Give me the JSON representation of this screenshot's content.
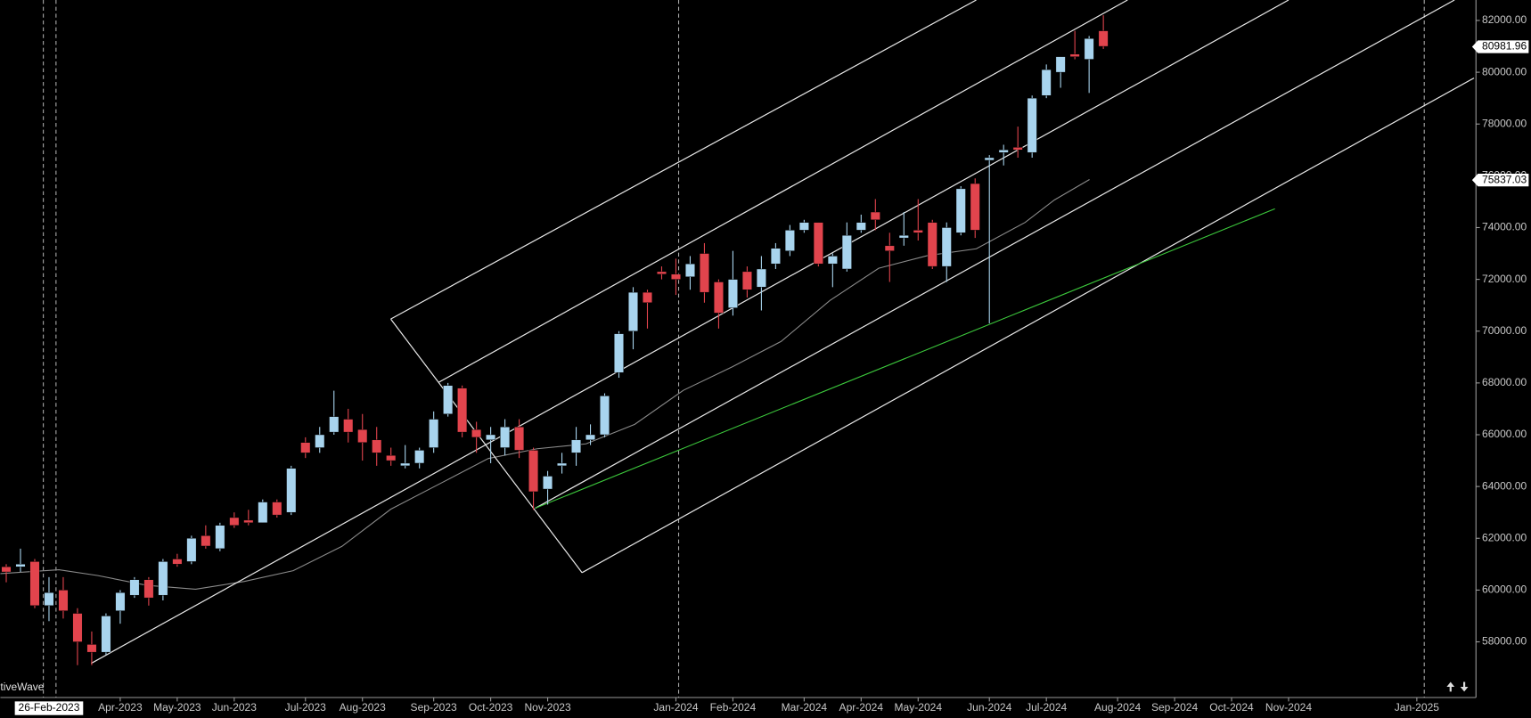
{
  "chart_data": {
    "type": "candlestick",
    "categories": [
      null,
      null,
      null,
      null,
      null,
      null,
      null,
      null,
      "Apr-2023",
      null,
      null,
      null,
      "May-2023",
      null,
      null,
      null,
      "Jun-2023",
      null,
      null,
      null,
      null,
      "Jul-2023",
      null,
      null,
      null,
      "Aug-2023",
      null,
      null,
      null,
      null,
      "Sep-2023",
      null,
      null,
      null,
      "Oct-2023",
      null,
      null,
      null,
      "Nov-2023",
      null,
      null,
      null,
      null,
      null,
      null,
      null,
      null,
      "Jan-2024",
      null,
      null,
      null,
      "Feb-2024",
      null,
      null,
      null,
      null,
      "Mar-2024",
      null,
      null,
      null,
      "Apr-2024",
      null,
      null,
      null,
      "May-2024",
      null,
      null,
      null,
      null,
      "Jun-2024",
      null,
      null,
      null,
      "Jul-2024",
      null,
      null,
      null,
      null,
      "Aug-2024",
      null,
      null,
      null,
      "Sep-2024",
      null,
      null,
      null,
      "Oct-2024",
      null,
      null,
      null,
      "Nov-2024",
      null,
      null,
      null,
      null,
      null,
      null,
      null,
      null,
      "Jan-2025",
      null,
      null,
      null,
      null
    ],
    "open": [
      60900,
      60900,
      61100,
      59400,
      60000,
      59100,
      57900,
      57600,
      59200,
      59800,
      60400,
      59800,
      61200,
      61100,
      62100,
      61600,
      62800,
      62700,
      62600,
      63400,
      63000,
      65700,
      65500,
      66100,
      66600,
      66200,
      65800,
      65200,
      64800,
      64900,
      65500,
      66800,
      67800,
      66200,
      65800,
      65500,
      66300,
      65400,
      63900,
      64800,
      65300,
      65800,
      66000,
      68400,
      70000,
      71500,
      72300,
      72200,
      72100,
      73000,
      71900,
      70900,
      72300,
      71700,
      72600,
      73100,
      73900,
      74200,
      72600,
      72400,
      73900,
      74600,
      73300,
      73600,
      73900,
      74200,
      72500,
      73800,
      75700,
      76600,
      76900,
      77100,
      76900,
      79100,
      80000,
      80700,
      80500,
      81600,
      null,
      null,
      null,
      null,
      null,
      null,
      null,
      null,
      null,
      null,
      null,
      null,
      null,
      null,
      null,
      null,
      null,
      null,
      null,
      null,
      null,
      null,
      null,
      null,
      null,
      null
    ],
    "high": [
      61000,
      61600,
      61200,
      60500,
      60500,
      59300,
      58400,
      59100,
      60000,
      60500,
      60500,
      61200,
      61400,
      62100,
      62500,
      62600,
      63000,
      63100,
      63500,
      63500,
      64800,
      65900,
      66300,
      67700,
      67000,
      66800,
      66300,
      65500,
      65600,
      65500,
      66900,
      68000,
      67900,
      66500,
      66300,
      66600,
      66600,
      65500,
      64600,
      65300,
      66300,
      66400,
      67600,
      70000,
      71700,
      71600,
      72500,
      72800,
      72900,
      73400,
      72000,
      73100,
      72500,
      72900,
      73400,
      74100,
      74300,
      74200,
      73000,
      74200,
      74500,
      75100,
      73800,
      74600,
      75100,
      74300,
      74200,
      75600,
      75900,
      76800,
      77200,
      77900,
      79100,
      80300,
      80600,
      81600,
      81400,
      82200,
      null,
      null,
      null,
      null,
      null,
      null,
      null,
      null,
      null,
      null,
      null,
      null,
      null,
      null,
      null,
      null,
      null,
      null,
      null,
      null,
      null,
      null,
      null,
      null,
      null,
      null
    ],
    "low": [
      60300,
      60700,
      59300,
      58800,
      58900,
      57100,
      57100,
      57500,
      58700,
      59700,
      59400,
      59600,
      60900,
      61000,
      61600,
      61500,
      62400,
      62500,
      62600,
      62800,
      62900,
      65100,
      65300,
      66000,
      65700,
      65000,
      64800,
      64800,
      64700,
      64700,
      65300,
      66700,
      65900,
      65300,
      64900,
      65200,
      65100,
      63100,
      63300,
      64500,
      64800,
      65600,
      65900,
      68200,
      69300,
      70100,
      72000,
      71400,
      71600,
      71100,
      70100,
      70600,
      71300,
      70800,
      72400,
      72900,
      73800,
      72500,
      71700,
      72300,
      73800,
      73900,
      71900,
      73300,
      73500,
      72400,
      71900,
      73700,
      73600,
      70300,
      76400,
      76700,
      76700,
      79000,
      79400,
      80500,
      79200,
      80900,
      null,
      null,
      null,
      null,
      null,
      null,
      null,
      null,
      null,
      null,
      null,
      null,
      null,
      null,
      null,
      null,
      null,
      null,
      null,
      null,
      null,
      null,
      null,
      null,
      null,
      null
    ],
    "close": [
      60700,
      61000,
      59400,
      59900,
      59200,
      58000,
      57600,
      59000,
      59900,
      60400,
      59700,
      61100,
      61000,
      62000,
      61700,
      62500,
      62500,
      62600,
      63400,
      62900,
      64700,
      65300,
      66000,
      66700,
      66100,
      65700,
      65300,
      65000,
      64900,
      65400,
      66600,
      67900,
      66100,
      65900,
      66000,
      66300,
      65400,
      63800,
      64400,
      64900,
      65800,
      66000,
      67500,
      69900,
      71500,
      71100,
      72200,
      72000,
      72600,
      71500,
      70700,
      72000,
      71600,
      72400,
      73200,
      73900,
      74200,
      72600,
      72900,
      73700,
      74200,
      74300,
      73100,
      73700,
      73800,
      72500,
      74000,
      75500,
      73900,
      76700,
      77000,
      77000,
      79000,
      80100,
      80600,
      80600,
      81300,
      81000,
      null,
      null,
      null,
      null,
      null,
      null,
      null,
      null,
      null,
      null,
      null,
      null,
      null,
      null,
      null,
      null,
      null,
      null,
      null,
      null,
      null,
      null,
      null,
      null,
      null,
      null
    ],
    "up_color": "#a8d4ee",
    "down_color": "#e2444d",
    "ylim": [
      55850,
      82790
    ],
    "yticks": [
      {
        "value": 58000,
        "label": "58000.00"
      },
      {
        "value": 60000,
        "label": "60000.00"
      },
      {
        "value": 62000,
        "label": "62000.00"
      },
      {
        "value": 64000,
        "label": "64000.00"
      },
      {
        "value": 66000,
        "label": "66000.00"
      },
      {
        "value": 68000,
        "label": "68000.00"
      },
      {
        "value": 70000,
        "label": "70000.00"
      },
      {
        "value": 72000,
        "label": "72000.00"
      },
      {
        "value": 74000,
        "label": "74000.00"
      },
      {
        "value": 76000,
        "label": "76000.00"
      },
      {
        "value": 78000,
        "label": "78000.00"
      },
      {
        "value": 80000,
        "label": "80000.00"
      },
      {
        "value": 82000,
        "label": "82000.00"
      }
    ],
    "price_markers": [
      80981.96,
      75837.03
    ],
    "crosshair_label": "26-Feb-2023",
    "watermark": "tiveWave"
  }
}
